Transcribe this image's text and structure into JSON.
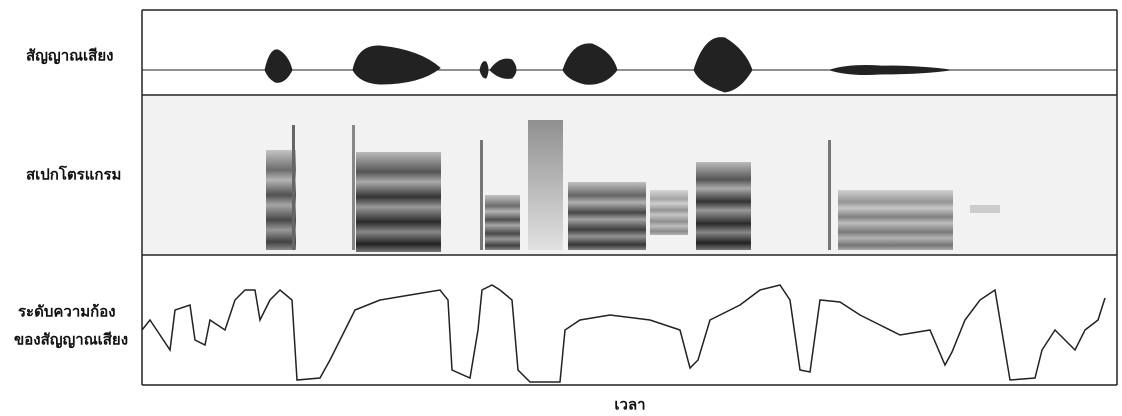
{
  "panels": {
    "waveform": "สัญญาณเสียง",
    "spectrogram": "สเปกโตรแกรม",
    "voicing": [
      "ระดับความก้อง",
      "ของสัญญาณเสียง"
    ]
  },
  "x_axis_label": "เวลา"
}
